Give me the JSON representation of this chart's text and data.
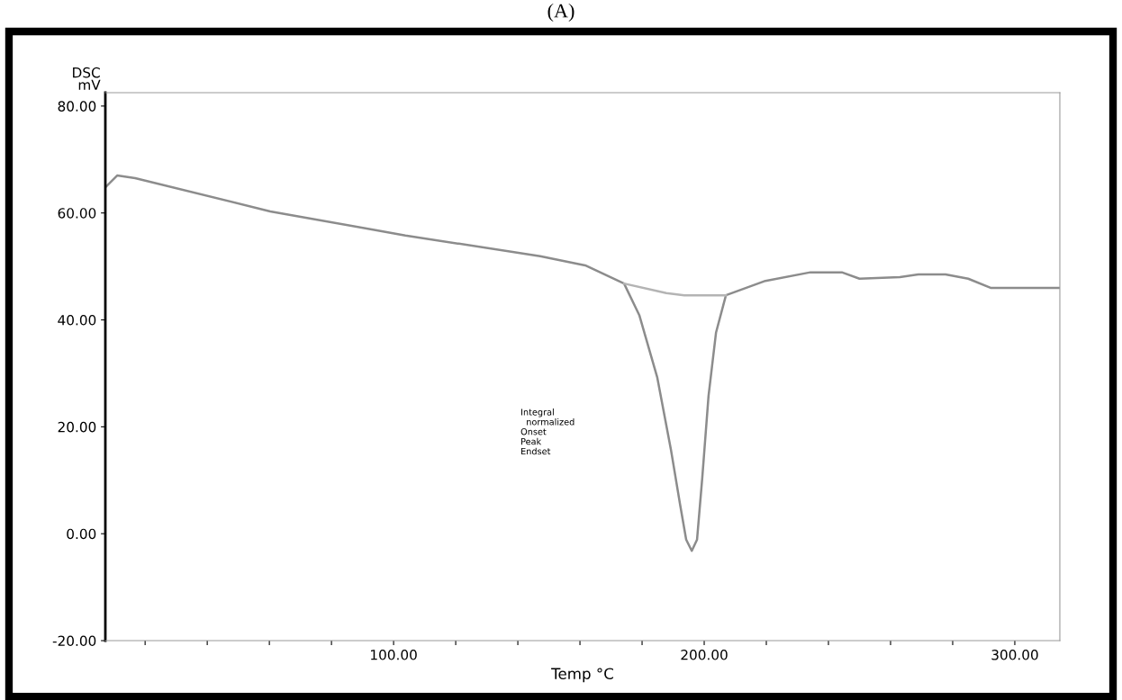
{
  "chart_data": {
    "type": "line",
    "title": "(A)",
    "xlabel": "Temp °C",
    "ylabel": "DSC\nmV",
    "series": [
      {
        "color": "#8c8c8c",
        "x": [
          7.2,
          11,
          16.8,
          60.3,
          103.8,
          147.2,
          161.7,
          174.2,
          179.1,
          184.9,
          189.3,
          192.2,
          194.2,
          196,
          197.7,
          199.4,
          201.4,
          203.8,
          207,
          219.7,
          234.2,
          244.3,
          250,
          263,
          269,
          277.7,
          285,
          292.2,
          314.5
        ],
        "values": [
          64.8,
          67.0,
          66.5,
          60.3,
          55.8,
          51.9,
          50.2,
          46.8,
          40.9,
          29.2,
          15.7,
          5.6,
          -1.1,
          -3.2,
          -1.1,
          10.6,
          25.8,
          37.6,
          44.6,
          47.3,
          48.9,
          48.9,
          47.7,
          48,
          48.5,
          48.5,
          47.7,
          46,
          46
        ]
      },
      {
        "color": "#b4b4b4",
        "x": [
          174.2,
          187.8,
          193.6,
          207
        ],
        "values": [
          46.8,
          45.0,
          44.6,
          44.6
        ]
      }
    ],
    "annotations": [
      "Integral\n  normalized\nOnset\nPeak\nEndset"
    ],
    "xlim": [
      7.2,
      314.5
    ],
    "ylim": [
      -20,
      82.5
    ],
    "xticks": [
      {
        "value": 20,
        "label": null
      },
      {
        "value": 40,
        "label": null
      },
      {
        "value": 60,
        "label": null
      },
      {
        "value": 80,
        "label": null
      },
      {
        "value": 100,
        "label": "100.00"
      },
      {
        "value": 120,
        "label": null
      },
      {
        "value": 140,
        "label": null
      },
      {
        "value": 160,
        "label": null
      },
      {
        "value": 180,
        "label": null
      },
      {
        "value": 200,
        "label": "200.00"
      },
      {
        "value": 220,
        "label": null
      },
      {
        "value": 240,
        "label": null
      },
      {
        "value": 260,
        "label": null
      },
      {
        "value": 280,
        "label": null
      },
      {
        "value": 300,
        "label": "300.00"
      }
    ],
    "yticks": [
      {
        "value": -20,
        "label": "-20.00"
      },
      {
        "value": 0,
        "label": "0.00"
      },
      {
        "value": 20,
        "label": "20.00"
      },
      {
        "value": 40,
        "label": "40.00"
      },
      {
        "value": 60,
        "label": "60.00"
      },
      {
        "value": 80,
        "label": "80.00"
      }
    ],
    "grid": false,
    "legend": false
  }
}
